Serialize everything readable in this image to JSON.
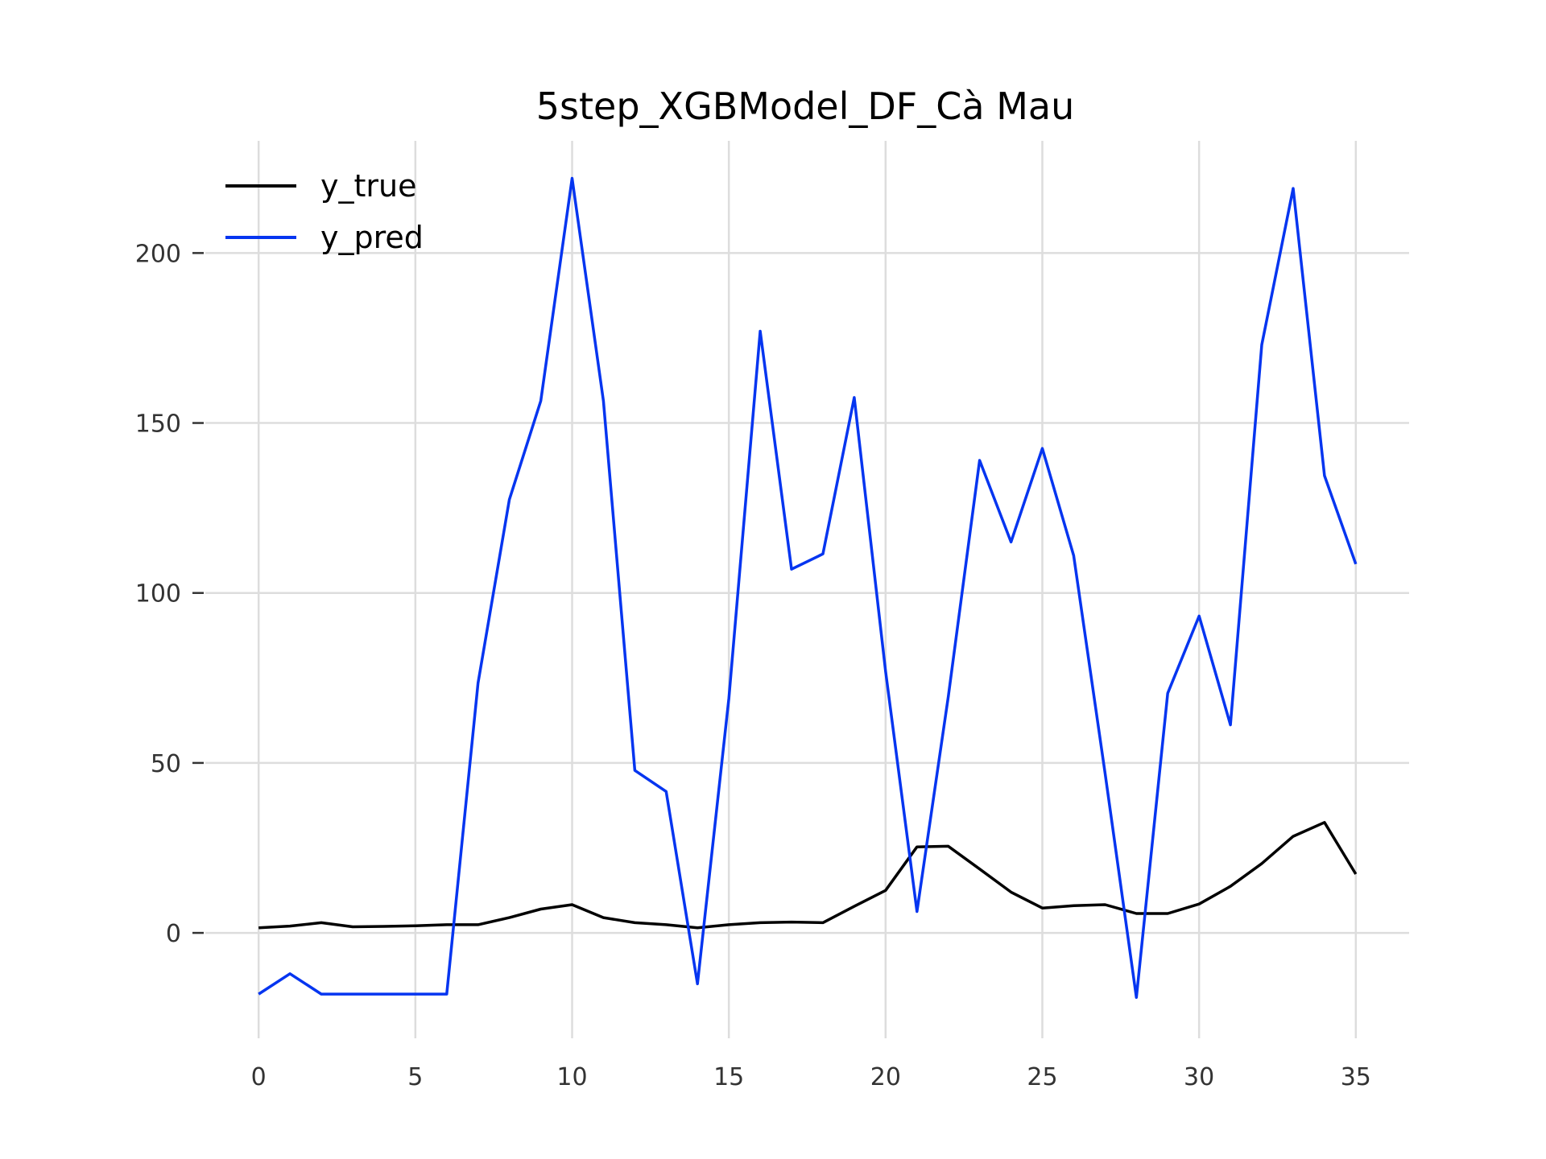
{
  "chart_data": {
    "type": "line",
    "title": "5step_XGBModel_DF_Cà Mau",
    "xlabel": "",
    "ylabel": "",
    "xlim": [
      -1.7,
      36.7
    ],
    "ylim": [
      -31,
      233
    ],
    "x_ticks": [
      0,
      5,
      10,
      15,
      20,
      25,
      30,
      35
    ],
    "y_ticks": [
      0,
      50,
      100,
      150,
      200
    ],
    "grid": true,
    "legend_position": "top-left",
    "x": [
      0,
      1,
      2,
      3,
      4,
      5,
      6,
      7,
      8,
      9,
      10,
      11,
      12,
      13,
      14,
      15,
      16,
      17,
      18,
      19,
      20,
      21,
      22,
      23,
      24,
      25,
      26,
      27,
      28,
      29,
      30,
      31,
      32,
      33,
      34,
      35
    ],
    "series": [
      {
        "name": "y_true",
        "color": "#000000",
        "values": [
          1.5,
          2,
          3,
          1.8,
          1.9,
          2.1,
          2.4,
          2.4,
          4.5,
          7,
          8.3,
          4.5,
          3,
          2.4,
          1.5,
          2.4,
          3,
          3.2,
          3,
          7.8,
          12.5,
          25.3,
          25.5,
          18.8,
          12,
          7.3,
          8,
          8.3,
          5.7,
          5.7,
          8.5,
          13.7,
          20.4,
          28.4,
          32.5,
          17.3
        ]
      },
      {
        "name": "y_pred",
        "color": "#0535f0",
        "values": [
          -18,
          -12,
          -18,
          -18,
          -18,
          -18,
          -18,
          73.5,
          127.5,
          156.5,
          222,
          156.5,
          47.8,
          41.6,
          -15,
          69,
          177,
          107,
          111.5,
          157.5,
          77,
          6.3,
          69.5,
          139,
          115,
          142.5,
          111,
          47,
          -19,
          70.5,
          93.2,
          61.2,
          173,
          219,
          134.5,
          108.5
        ]
      }
    ]
  }
}
